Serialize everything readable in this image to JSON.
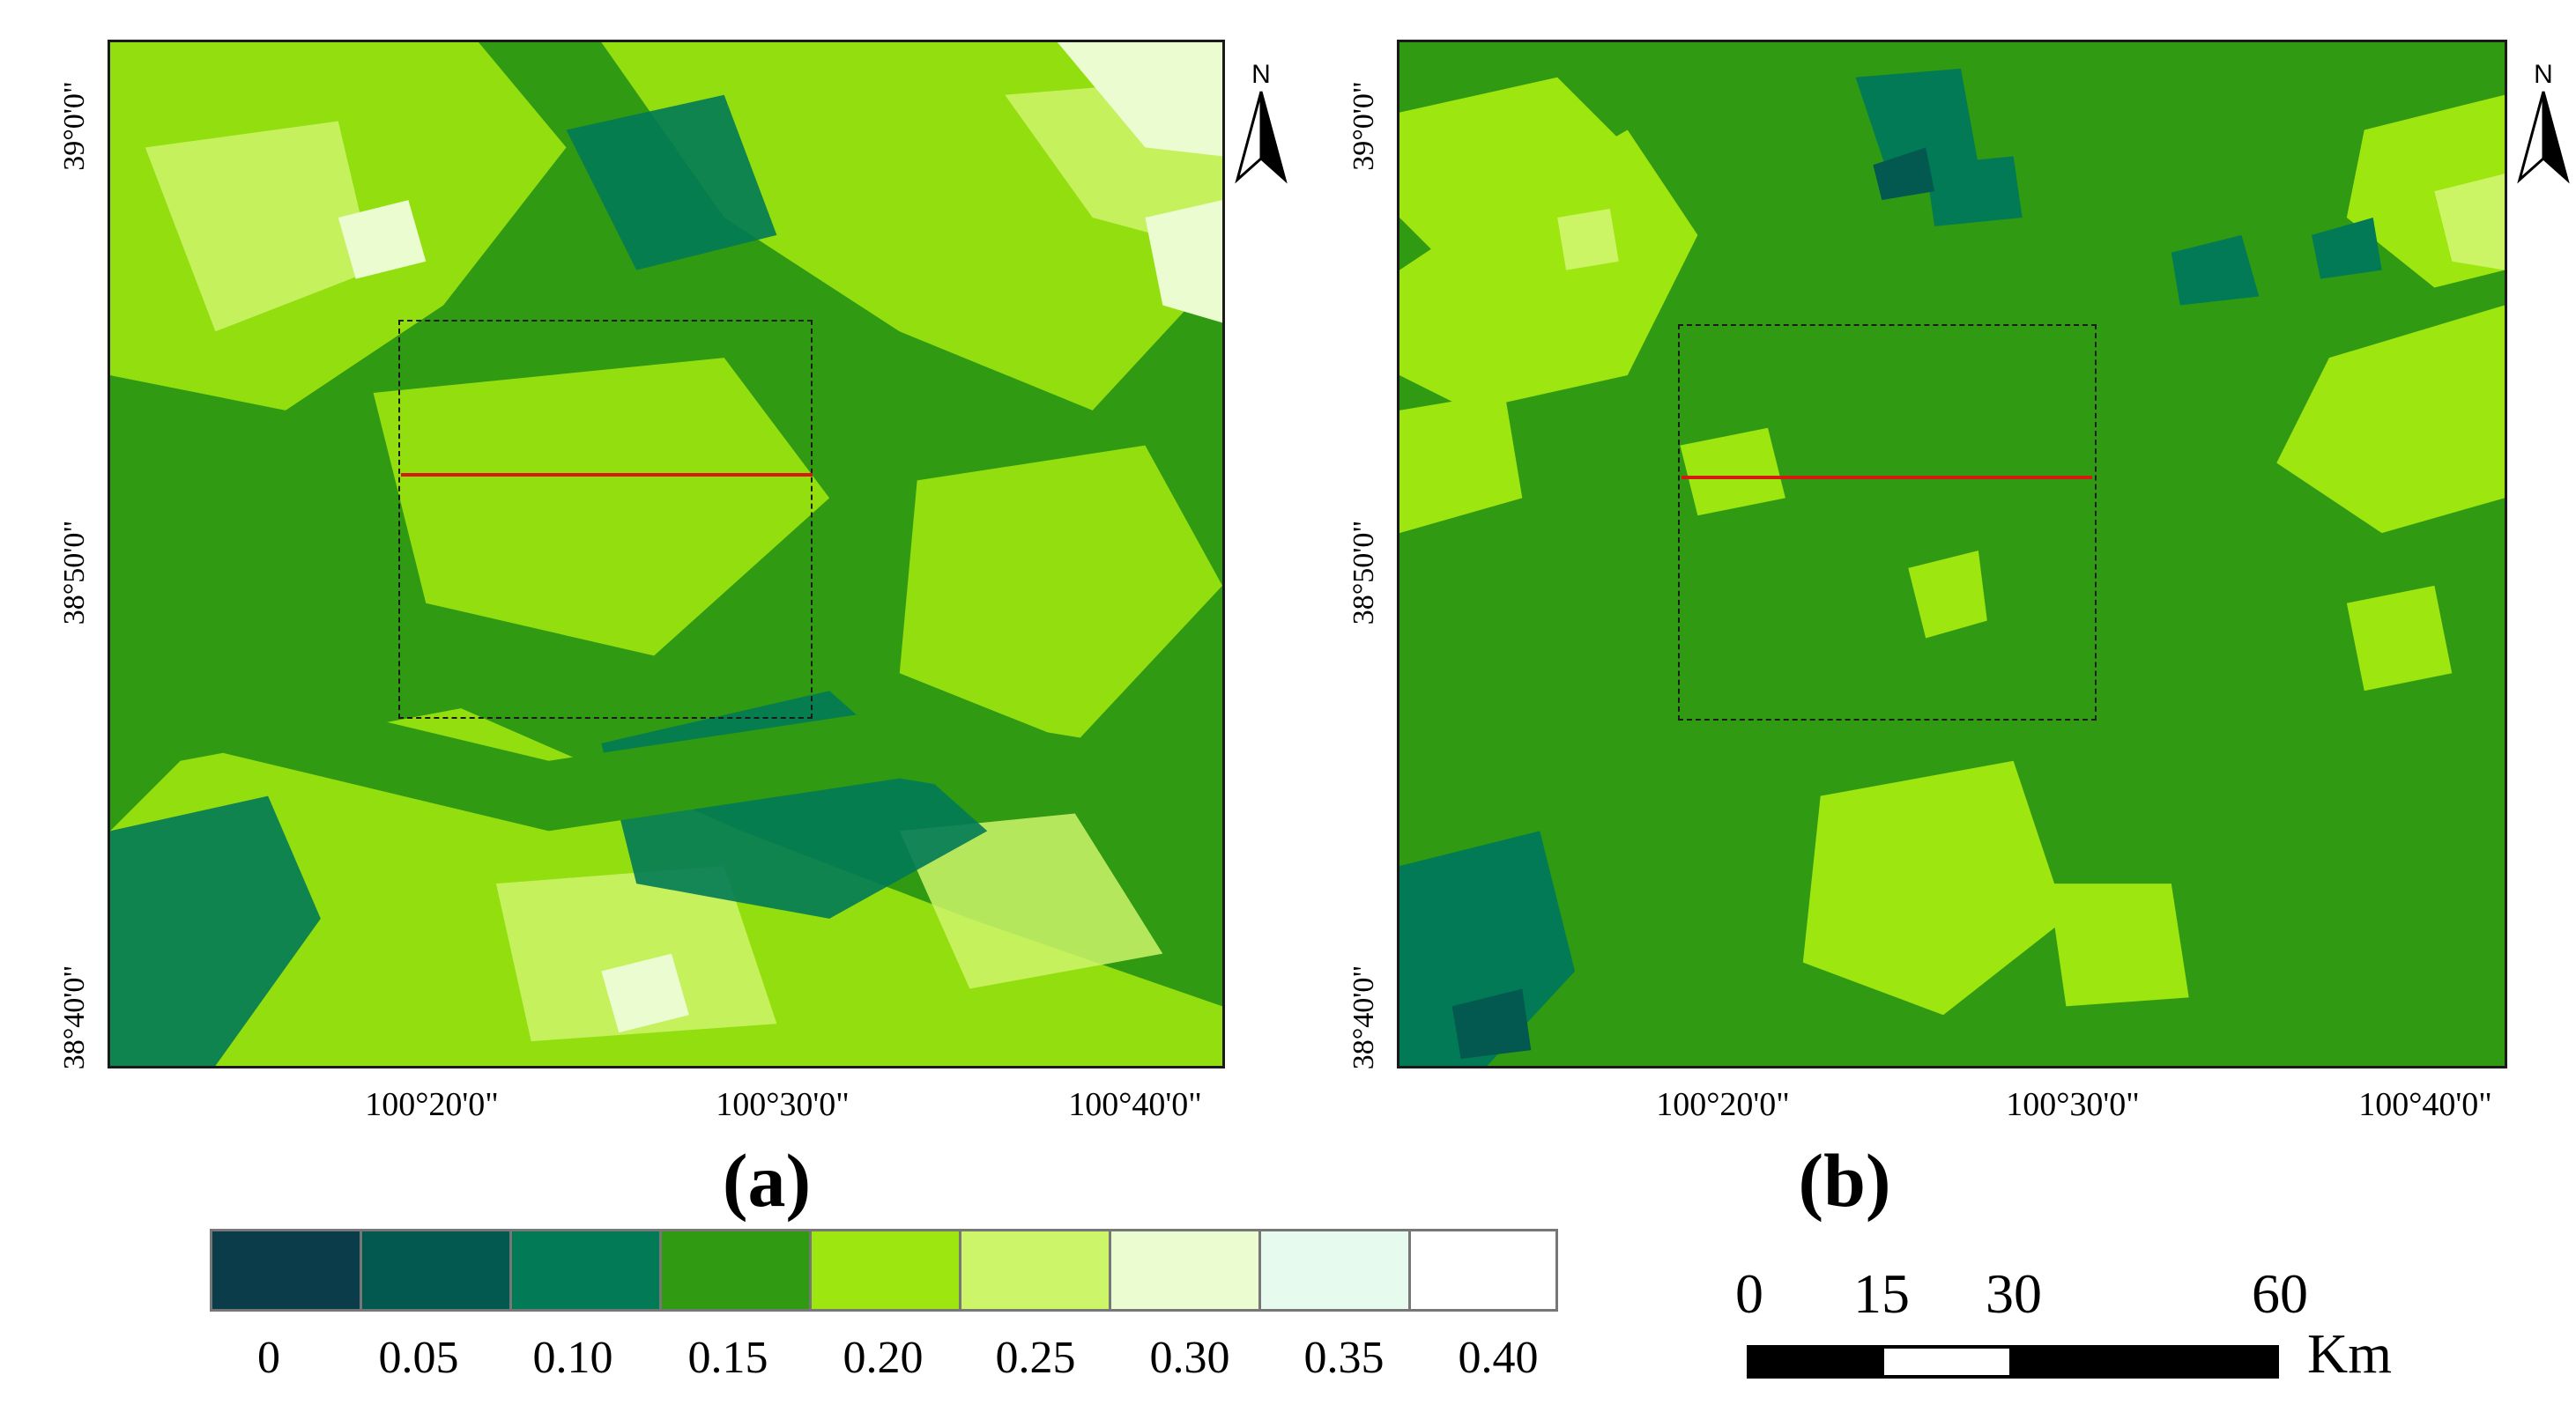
{
  "panels": [
    {
      "caption": "(a)",
      "lat_labels": [
        "39°0'0\"",
        "38°50'0\"",
        "38°40'0\""
      ],
      "lon_labels": [
        "100°20'0\"",
        "100°30'0\"",
        "100°40'0\""
      ],
      "north_letter": "N"
    },
    {
      "caption": "(b)",
      "lat_labels": [
        "39°0'0\"",
        "38°50'0\"",
        "38°40'0\""
      ],
      "lon_labels": [
        "100°20'0\"",
        "100°30'0\"",
        "100°40'0\""
      ],
      "north_letter": "N"
    }
  ],
  "legend": {
    "labels": [
      "0",
      "0.05",
      "0.10",
      "0.15",
      "0.20",
      "0.25",
      "0.30",
      "0.35",
      "0.40"
    ],
    "colors": [
      "#0b3c49",
      "#03594f",
      "#027a55",
      "#2f9a12",
      "#9de60f",
      "#cdf56a",
      "#eafcd0",
      "#e6fbee",
      "#ffffff"
    ]
  },
  "scale_bar": {
    "labels": [
      "0",
      "15",
      "30",
      "60"
    ],
    "unit": "Km"
  }
}
